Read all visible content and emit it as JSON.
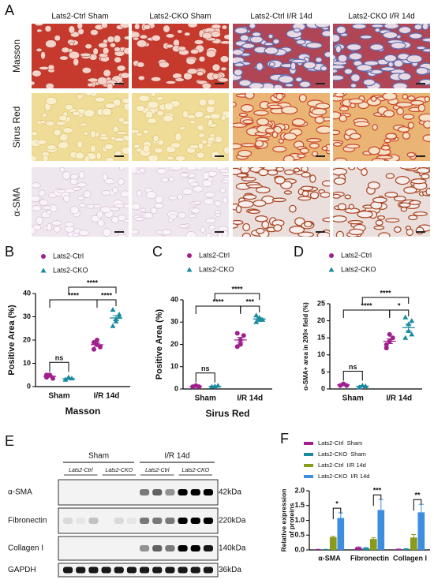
{
  "figure": {
    "panel_a": "A",
    "panel_e": "E"
  },
  "histology": {
    "columns": [
      "Lats2-Ctrl Sham",
      "Lats2-CKO Sham",
      "Lats2-Ctrl I/R 14d",
      "Lats2-CKO I/R 14d"
    ],
    "rows": [
      "Masson",
      "Sirus Red",
      "α-SMA"
    ]
  },
  "western_blot": {
    "groups": [
      "Sham",
      "I/R 14d"
    ],
    "genotypes": [
      "Lats2-Ctrl",
      "Lats2-CKO",
      "Lats2-Ctrl",
      "Lats2-CKO"
    ],
    "proteins": [
      {
        "name": "α-SMA",
        "size": "42kDa"
      },
      {
        "name": "Fibronectin",
        "size": "220kDa"
      },
      {
        "name": "Collagen I",
        "size": "140kDa"
      },
      {
        "name": "GAPDH",
        "size": "36kDa"
      }
    ]
  },
  "chart_data": [
    {
      "type": "strip",
      "label": "B",
      "xlabel": "Masson",
      "ylabel": "Positive Area (%)",
      "categories": [
        "Sham",
        "I/R 14d"
      ],
      "ylim": [
        0,
        40
      ],
      "yticks": [
        0,
        10,
        20,
        30,
        40
      ],
      "series": [
        {
          "name": "Lats2-Ctrl",
          "color": "#a0208f",
          "marker": "circle",
          "values": [
            [
              4,
              5,
              3.5,
              5
            ],
            [
              16,
              18,
              17,
              19,
              20
            ]
          ],
          "means": [
            4.4,
            18
          ],
          "errors": [
            0.4,
            0.7
          ]
        },
        {
          "name": "Lats2-CKO",
          "color": "#1a8a9e",
          "marker": "triangle",
          "values": [
            [
              3,
              4,
              3.5,
              3
            ],
            [
              26,
              29,
              30,
              33,
              28,
              31
            ]
          ],
          "means": [
            3.4,
            29.5
          ],
          "errors": [
            0.3,
            1
          ]
        }
      ],
      "annotations": [
        "ns",
        "****",
        "****",
        "****"
      ]
    },
    {
      "type": "strip",
      "label": "C",
      "xlabel": "Sirus Red",
      "ylabel": "Positive Area (%)",
      "categories": [
        "Sham",
        "I/R 14d"
      ],
      "ylim": [
        0,
        40
      ],
      "yticks": [
        0,
        10,
        20,
        30,
        40
      ],
      "series": [
        {
          "name": "Lats2-Ctrl",
          "color": "#a0208f",
          "marker": "circle",
          "values": [
            [
              1,
              1.5,
              1
            ],
            [
              19,
              22,
              24,
              25,
              20
            ]
          ],
          "means": [
            1.2,
            22
          ],
          "errors": [
            0.2,
            1.2
          ]
        },
        {
          "name": "Lats2-CKO",
          "color": "#1a8a9e",
          "marker": "triangle",
          "values": [
            [
              1,
              1.2,
              1.5
            ],
            [
              30,
              32,
              31,
              33,
              31
            ]
          ],
          "means": [
            1.2,
            31.4
          ],
          "errors": [
            0.2,
            0.5
          ]
        }
      ],
      "annotations": [
        "ns",
        "****",
        "****",
        "***"
      ]
    },
    {
      "type": "strip",
      "label": "D",
      "xlabel": null,
      "ylabel": "α-SMA+ area in 200× field (%)",
      "categories": [
        "Sham",
        "I/R 14d"
      ],
      "ylim": [
        0,
        25
      ],
      "yticks": [
        0,
        5,
        10,
        15,
        20,
        25
      ],
      "series": [
        {
          "name": "Lats2-Ctrl",
          "color": "#a0208f",
          "marker": "circle",
          "values": [
            [
              1,
              1.5,
              1
            ],
            [
              12,
              14,
              15,
              13,
              16
            ]
          ],
          "means": [
            1.2,
            14
          ],
          "errors": [
            0.2,
            0.7
          ]
        },
        {
          "name": "Lats2-CKO",
          "color": "#1a8a9e",
          "marker": "triangle",
          "values": [
            [
              0.5,
              1,
              0.8
            ],
            [
              15,
              17,
              20,
              21,
              19,
              16
            ]
          ],
          "means": [
            0.8,
            18
          ],
          "errors": [
            0.2,
            1
          ]
        }
      ],
      "annotations": [
        "ns",
        "****",
        "****",
        "*"
      ]
    },
    {
      "type": "bar",
      "label": "F",
      "ylabel_lines": [
        "Relative expression",
        "of proteins"
      ],
      "categories": [
        "α-SMA",
        "Fibronectin",
        "Collagen I"
      ],
      "ylim": [
        0,
        2
      ],
      "yticks": [
        {
          "value": 0,
          "label": "0.0"
        },
        {
          "value": 0.5,
          "label": "0.5"
        },
        {
          "value": 1,
          "label": "1.0"
        },
        {
          "value": 1.5,
          "label": "1.5"
        },
        {
          "value": 2,
          "label": "2.0"
        }
      ],
      "series": [
        {
          "name": "Lats2-Ctrl  Sham",
          "color": "#a0208f",
          "values": [
            0.01,
            0.08,
            0.02
          ],
          "errors": [
            0.01,
            0.02,
            0.01
          ]
        },
        {
          "name": "Lats2-CKO  Sham",
          "color": "#1a8a9e",
          "values": [
            0.01,
            0.06,
            0.03
          ],
          "errors": [
            0.01,
            0.02,
            0.01
          ]
        },
        {
          "name": "Lats2-Ctrl  I/R 14d",
          "color": "#8a9a1b",
          "values": [
            0.43,
            0.37,
            0.42
          ],
          "errors": [
            0.03,
            0.04,
            0.1
          ]
        },
        {
          "name": "Lats2-CKO  I/R 14d",
          "color": "#3d8ede",
          "values": [
            1.08,
            1.35,
            1.27
          ],
          "errors": [
            0.17,
            0.35,
            0.27
          ]
        }
      ],
      "annotations": [
        "*",
        "***",
        "**"
      ]
    }
  ]
}
